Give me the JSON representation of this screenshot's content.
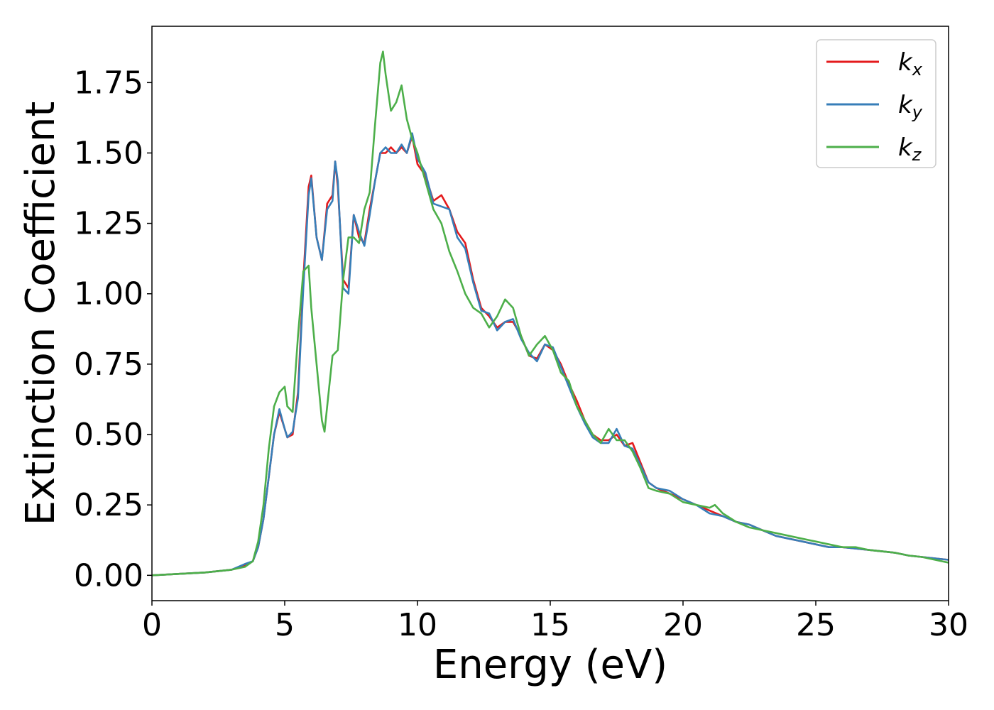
{
  "chart_data": {
    "type": "line",
    "xlabel": "Energy (eV)",
    "ylabel": "Extinction Coefficient",
    "xlim": [
      0,
      30
    ],
    "ylim": [
      -0.09,
      1.95
    ],
    "xticks": [
      "0",
      "5",
      "10",
      "15",
      "20",
      "25",
      "30"
    ],
    "yticks": [
      "0.00",
      "0.25",
      "0.50",
      "0.75",
      "1.00",
      "1.25",
      "1.50",
      "1.75"
    ],
    "grid": false,
    "legend_position": "top-right",
    "series": [
      {
        "name": "kx",
        "legend_base": "k",
        "legend_sub": "x",
        "color": "#e41a1c",
        "x": [
          0,
          1,
          2,
          3,
          3.5,
          3.8,
          4.0,
          4.2,
          4.4,
          4.6,
          4.8,
          5.0,
          5.1,
          5.3,
          5.5,
          5.7,
          5.9,
          6.0,
          6.2,
          6.4,
          6.6,
          6.8,
          6.9,
          7.0,
          7.2,
          7.4,
          7.6,
          7.8,
          8.0,
          8.2,
          8.4,
          8.6,
          8.8,
          9.0,
          9.2,
          9.4,
          9.6,
          9.8,
          10.0,
          10.3,
          10.6,
          10.9,
          11.2,
          11.5,
          11.8,
          12.1,
          12.4,
          12.7,
          13.0,
          13.3,
          13.6,
          13.9,
          14.2,
          14.5,
          14.8,
          15.1,
          15.4,
          15.7,
          16.0,
          16.3,
          16.6,
          16.9,
          17.2,
          17.5,
          17.8,
          18.1,
          18.4,
          18.7,
          19.0,
          19.5,
          20.0,
          20.5,
          21.0,
          21.5,
          22.0,
          22.5,
          23.0,
          23.5,
          24.0,
          24.5,
          25.0,
          25.5,
          26.0,
          26.5,
          27.0,
          27.5,
          28.0,
          28.5,
          29.0,
          29.5,
          30
        ],
        "y": [
          0.0,
          0.005,
          0.01,
          0.02,
          0.035,
          0.05,
          0.1,
          0.2,
          0.35,
          0.5,
          0.58,
          0.52,
          0.49,
          0.5,
          0.65,
          1.05,
          1.38,
          1.42,
          1.2,
          1.12,
          1.32,
          1.35,
          1.47,
          1.38,
          1.05,
          1.02,
          1.28,
          1.2,
          1.18,
          1.3,
          1.4,
          1.5,
          1.5,
          1.52,
          1.5,
          1.52,
          1.5,
          1.56,
          1.46,
          1.42,
          1.33,
          1.35,
          1.3,
          1.22,
          1.18,
          1.05,
          0.95,
          0.92,
          0.88,
          0.9,
          0.9,
          0.85,
          0.78,
          0.77,
          0.82,
          0.8,
          0.75,
          0.68,
          0.62,
          0.55,
          0.5,
          0.48,
          0.48,
          0.5,
          0.46,
          0.47,
          0.4,
          0.33,
          0.31,
          0.29,
          0.27,
          0.25,
          0.23,
          0.21,
          0.19,
          0.18,
          0.16,
          0.14,
          0.13,
          0.12,
          0.11,
          0.1,
          0.1,
          0.095,
          0.09,
          0.085,
          0.08,
          0.07,
          0.065,
          0.06,
          0.055
        ]
      },
      {
        "name": "ky",
        "legend_base": "k",
        "legend_sub": "y",
        "color": "#377eb8",
        "x": [
          0,
          1,
          2,
          3,
          3.5,
          3.8,
          4.0,
          4.2,
          4.4,
          4.6,
          4.8,
          5.0,
          5.1,
          5.3,
          5.5,
          5.7,
          5.9,
          6.0,
          6.2,
          6.4,
          6.6,
          6.8,
          6.9,
          7.0,
          7.2,
          7.4,
          7.6,
          7.8,
          8.0,
          8.2,
          8.4,
          8.6,
          8.8,
          9.0,
          9.2,
          9.4,
          9.6,
          9.8,
          10.0,
          10.3,
          10.6,
          10.9,
          11.2,
          11.5,
          11.8,
          12.1,
          12.4,
          12.7,
          13.0,
          13.3,
          13.6,
          13.9,
          14.2,
          14.5,
          14.8,
          15.1,
          15.4,
          15.7,
          16.0,
          16.3,
          16.6,
          16.9,
          17.2,
          17.5,
          17.8,
          18.1,
          18.4,
          18.7,
          19.0,
          19.5,
          20.0,
          20.5,
          21.0,
          21.5,
          22.0,
          22.5,
          23.0,
          23.5,
          24.0,
          24.5,
          25.0,
          25.5,
          26.0,
          26.5,
          27.0,
          27.5,
          28.0,
          28.5,
          29.0,
          29.5,
          30
        ],
        "y": [
          0.0,
          0.005,
          0.01,
          0.02,
          0.04,
          0.05,
          0.1,
          0.2,
          0.35,
          0.5,
          0.59,
          0.52,
          0.49,
          0.51,
          0.63,
          1.02,
          1.35,
          1.41,
          1.2,
          1.12,
          1.3,
          1.33,
          1.47,
          1.4,
          1.02,
          1.0,
          1.28,
          1.22,
          1.17,
          1.28,
          1.4,
          1.5,
          1.52,
          1.5,
          1.5,
          1.53,
          1.5,
          1.57,
          1.48,
          1.43,
          1.32,
          1.31,
          1.3,
          1.2,
          1.16,
          1.04,
          0.94,
          0.93,
          0.87,
          0.9,
          0.91,
          0.84,
          0.79,
          0.76,
          0.82,
          0.81,
          0.74,
          0.67,
          0.6,
          0.54,
          0.49,
          0.47,
          0.47,
          0.52,
          0.46,
          0.45,
          0.39,
          0.33,
          0.31,
          0.3,
          0.27,
          0.25,
          0.22,
          0.21,
          0.19,
          0.18,
          0.16,
          0.14,
          0.13,
          0.12,
          0.11,
          0.1,
          0.1,
          0.095,
          0.09,
          0.085,
          0.08,
          0.07,
          0.065,
          0.06,
          0.055
        ]
      },
      {
        "name": "kz",
        "legend_base": "k",
        "legend_sub": "z",
        "color": "#4daf4a",
        "x": [
          0,
          1,
          2,
          3,
          3.5,
          3.8,
          4.0,
          4.2,
          4.4,
          4.6,
          4.8,
          5.0,
          5.1,
          5.3,
          5.5,
          5.7,
          5.9,
          6.0,
          6.2,
          6.4,
          6.5,
          6.6,
          6.8,
          7.0,
          7.2,
          7.4,
          7.6,
          7.8,
          8.0,
          8.2,
          8.4,
          8.6,
          8.7,
          8.8,
          9.0,
          9.2,
          9.4,
          9.6,
          9.8,
          10.0,
          10.3,
          10.6,
          10.9,
          11.2,
          11.5,
          11.8,
          12.1,
          12.4,
          12.7,
          13.0,
          13.3,
          13.6,
          13.9,
          14.2,
          14.5,
          14.8,
          15.1,
          15.4,
          15.7,
          16.0,
          16.3,
          16.6,
          16.9,
          17.2,
          17.5,
          17.8,
          18.1,
          18.4,
          18.7,
          19.0,
          19.5,
          20.0,
          20.5,
          21.0,
          21.2,
          21.5,
          22.0,
          22.5,
          23.0,
          23.5,
          24.0,
          24.5,
          25.0,
          25.5,
          26.0,
          26.5,
          27.0,
          27.5,
          28.0,
          28.5,
          29.0,
          29.5,
          30
        ],
        "y": [
          0.0,
          0.005,
          0.01,
          0.02,
          0.03,
          0.05,
          0.12,
          0.25,
          0.45,
          0.6,
          0.65,
          0.67,
          0.6,
          0.58,
          0.85,
          1.08,
          1.1,
          0.95,
          0.75,
          0.55,
          0.51,
          0.6,
          0.78,
          0.8,
          1.05,
          1.2,
          1.2,
          1.18,
          1.3,
          1.36,
          1.6,
          1.82,
          1.86,
          1.78,
          1.65,
          1.68,
          1.74,
          1.62,
          1.55,
          1.5,
          1.4,
          1.3,
          1.25,
          1.15,
          1.08,
          1.0,
          0.95,
          0.93,
          0.88,
          0.92,
          0.98,
          0.95,
          0.85,
          0.78,
          0.82,
          0.85,
          0.8,
          0.72,
          0.69,
          0.6,
          0.55,
          0.5,
          0.47,
          0.52,
          0.48,
          0.48,
          0.44,
          0.38,
          0.31,
          0.3,
          0.29,
          0.26,
          0.25,
          0.24,
          0.25,
          0.22,
          0.19,
          0.17,
          0.16,
          0.15,
          0.14,
          0.13,
          0.12,
          0.11,
          0.1,
          0.1,
          0.09,
          0.085,
          0.08,
          0.07,
          0.065,
          0.055,
          0.045
        ]
      }
    ]
  }
}
